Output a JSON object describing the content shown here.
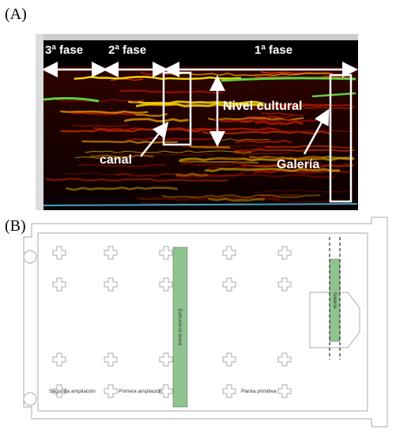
{
  "panel_a": {
    "label": "(A)",
    "phases": [
      "3ª fase",
      "2ª fase",
      "1ª fase"
    ],
    "annotations": {
      "cultural_level": "Nivel cultural",
      "canal": "canal",
      "gallery": "Galería"
    }
  },
  "panel_b": {
    "label": "(B)",
    "zones": [
      "Segunda ampliación",
      "Primera ampliación",
      "Planta primitiva"
    ],
    "features": {
      "linear_structure": "Estructura lineal",
      "gallery": "Galería"
    }
  }
}
